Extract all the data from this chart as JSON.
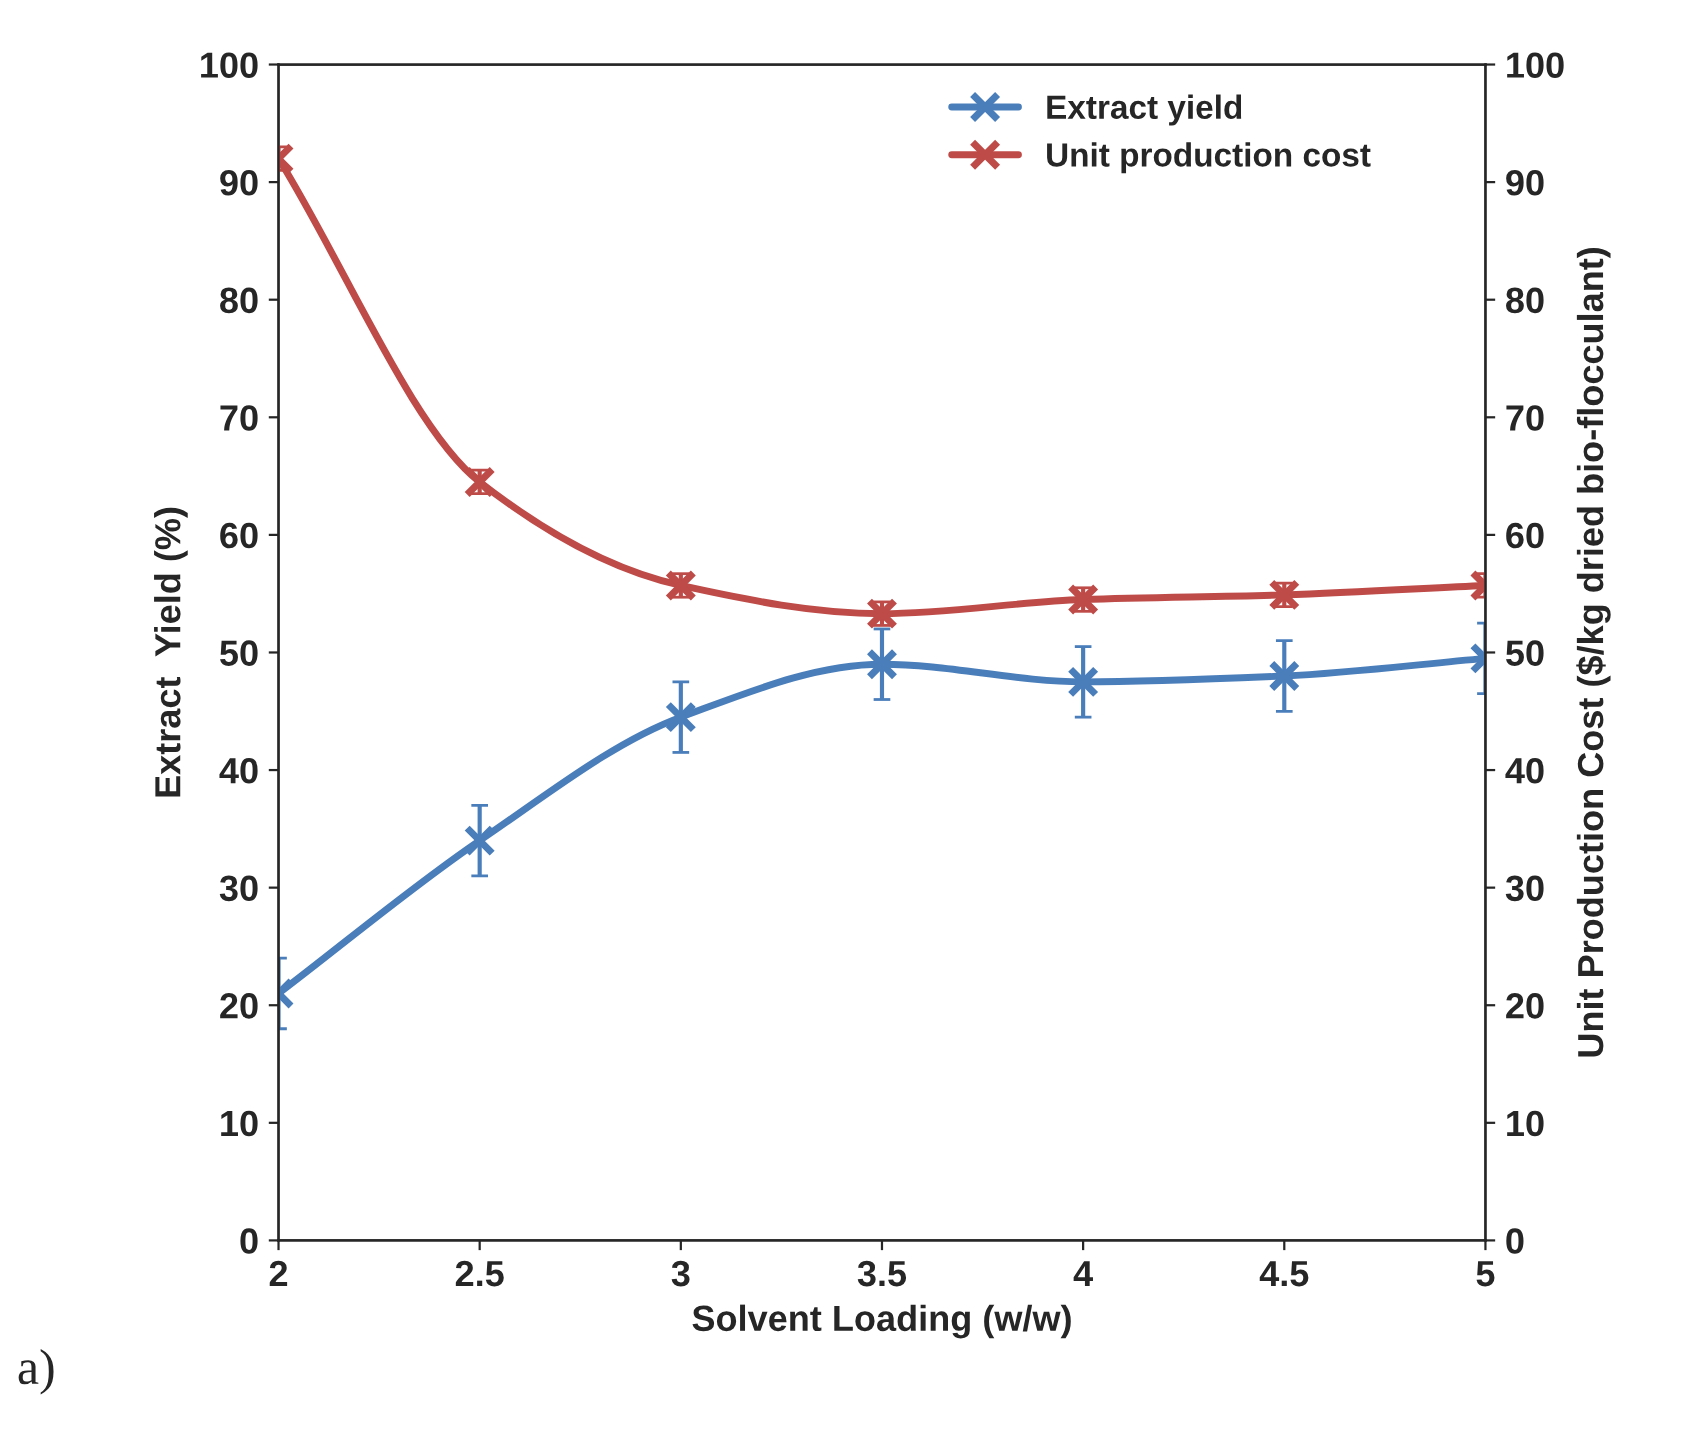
{
  "chart_data": {
    "type": "line",
    "xlabel": "Solvent Loading (w/w)",
    "ylabel": "Extract  Yield (%)",
    "y2label": "Unit Production Cost ($/kg dried bio-flocculant)",
    "x": [
      2,
      2.5,
      3,
      3.5,
      4,
      4.5,
      5
    ],
    "series": [
      {
        "name": "Extract yield",
        "color": "#4a7ebb",
        "values": [
          21,
          34,
          44.5,
          49,
          47.5,
          48,
          49.5
        ],
        "errors": [
          3,
          3,
          3,
          3,
          3,
          3,
          3
        ]
      },
      {
        "name": "Unit production cost",
        "color": "#be4b48",
        "axis": "y2",
        "values": [
          92,
          64.5,
          55.7,
          53.3,
          54.5,
          54.9,
          55.7
        ],
        "errors": [
          1,
          1,
          1,
          1,
          1,
          1,
          1
        ]
      }
    ],
    "xlim": [
      2,
      5
    ],
    "xticks": [
      2,
      2.5,
      3,
      3.5,
      4,
      4.5,
      5
    ],
    "ylim": [
      0,
      100
    ],
    "yticks": [
      0,
      10,
      20,
      30,
      40,
      50,
      60,
      70,
      80,
      90,
      100
    ],
    "y2lim": [
      0,
      100
    ],
    "y2ticks": [
      0,
      10,
      20,
      30,
      40,
      50,
      60,
      70,
      80,
      90,
      100
    ],
    "marker": "cross",
    "line_style": "solid",
    "grid": false,
    "legend": "top right",
    "annotations": [
      "a)"
    ]
  }
}
